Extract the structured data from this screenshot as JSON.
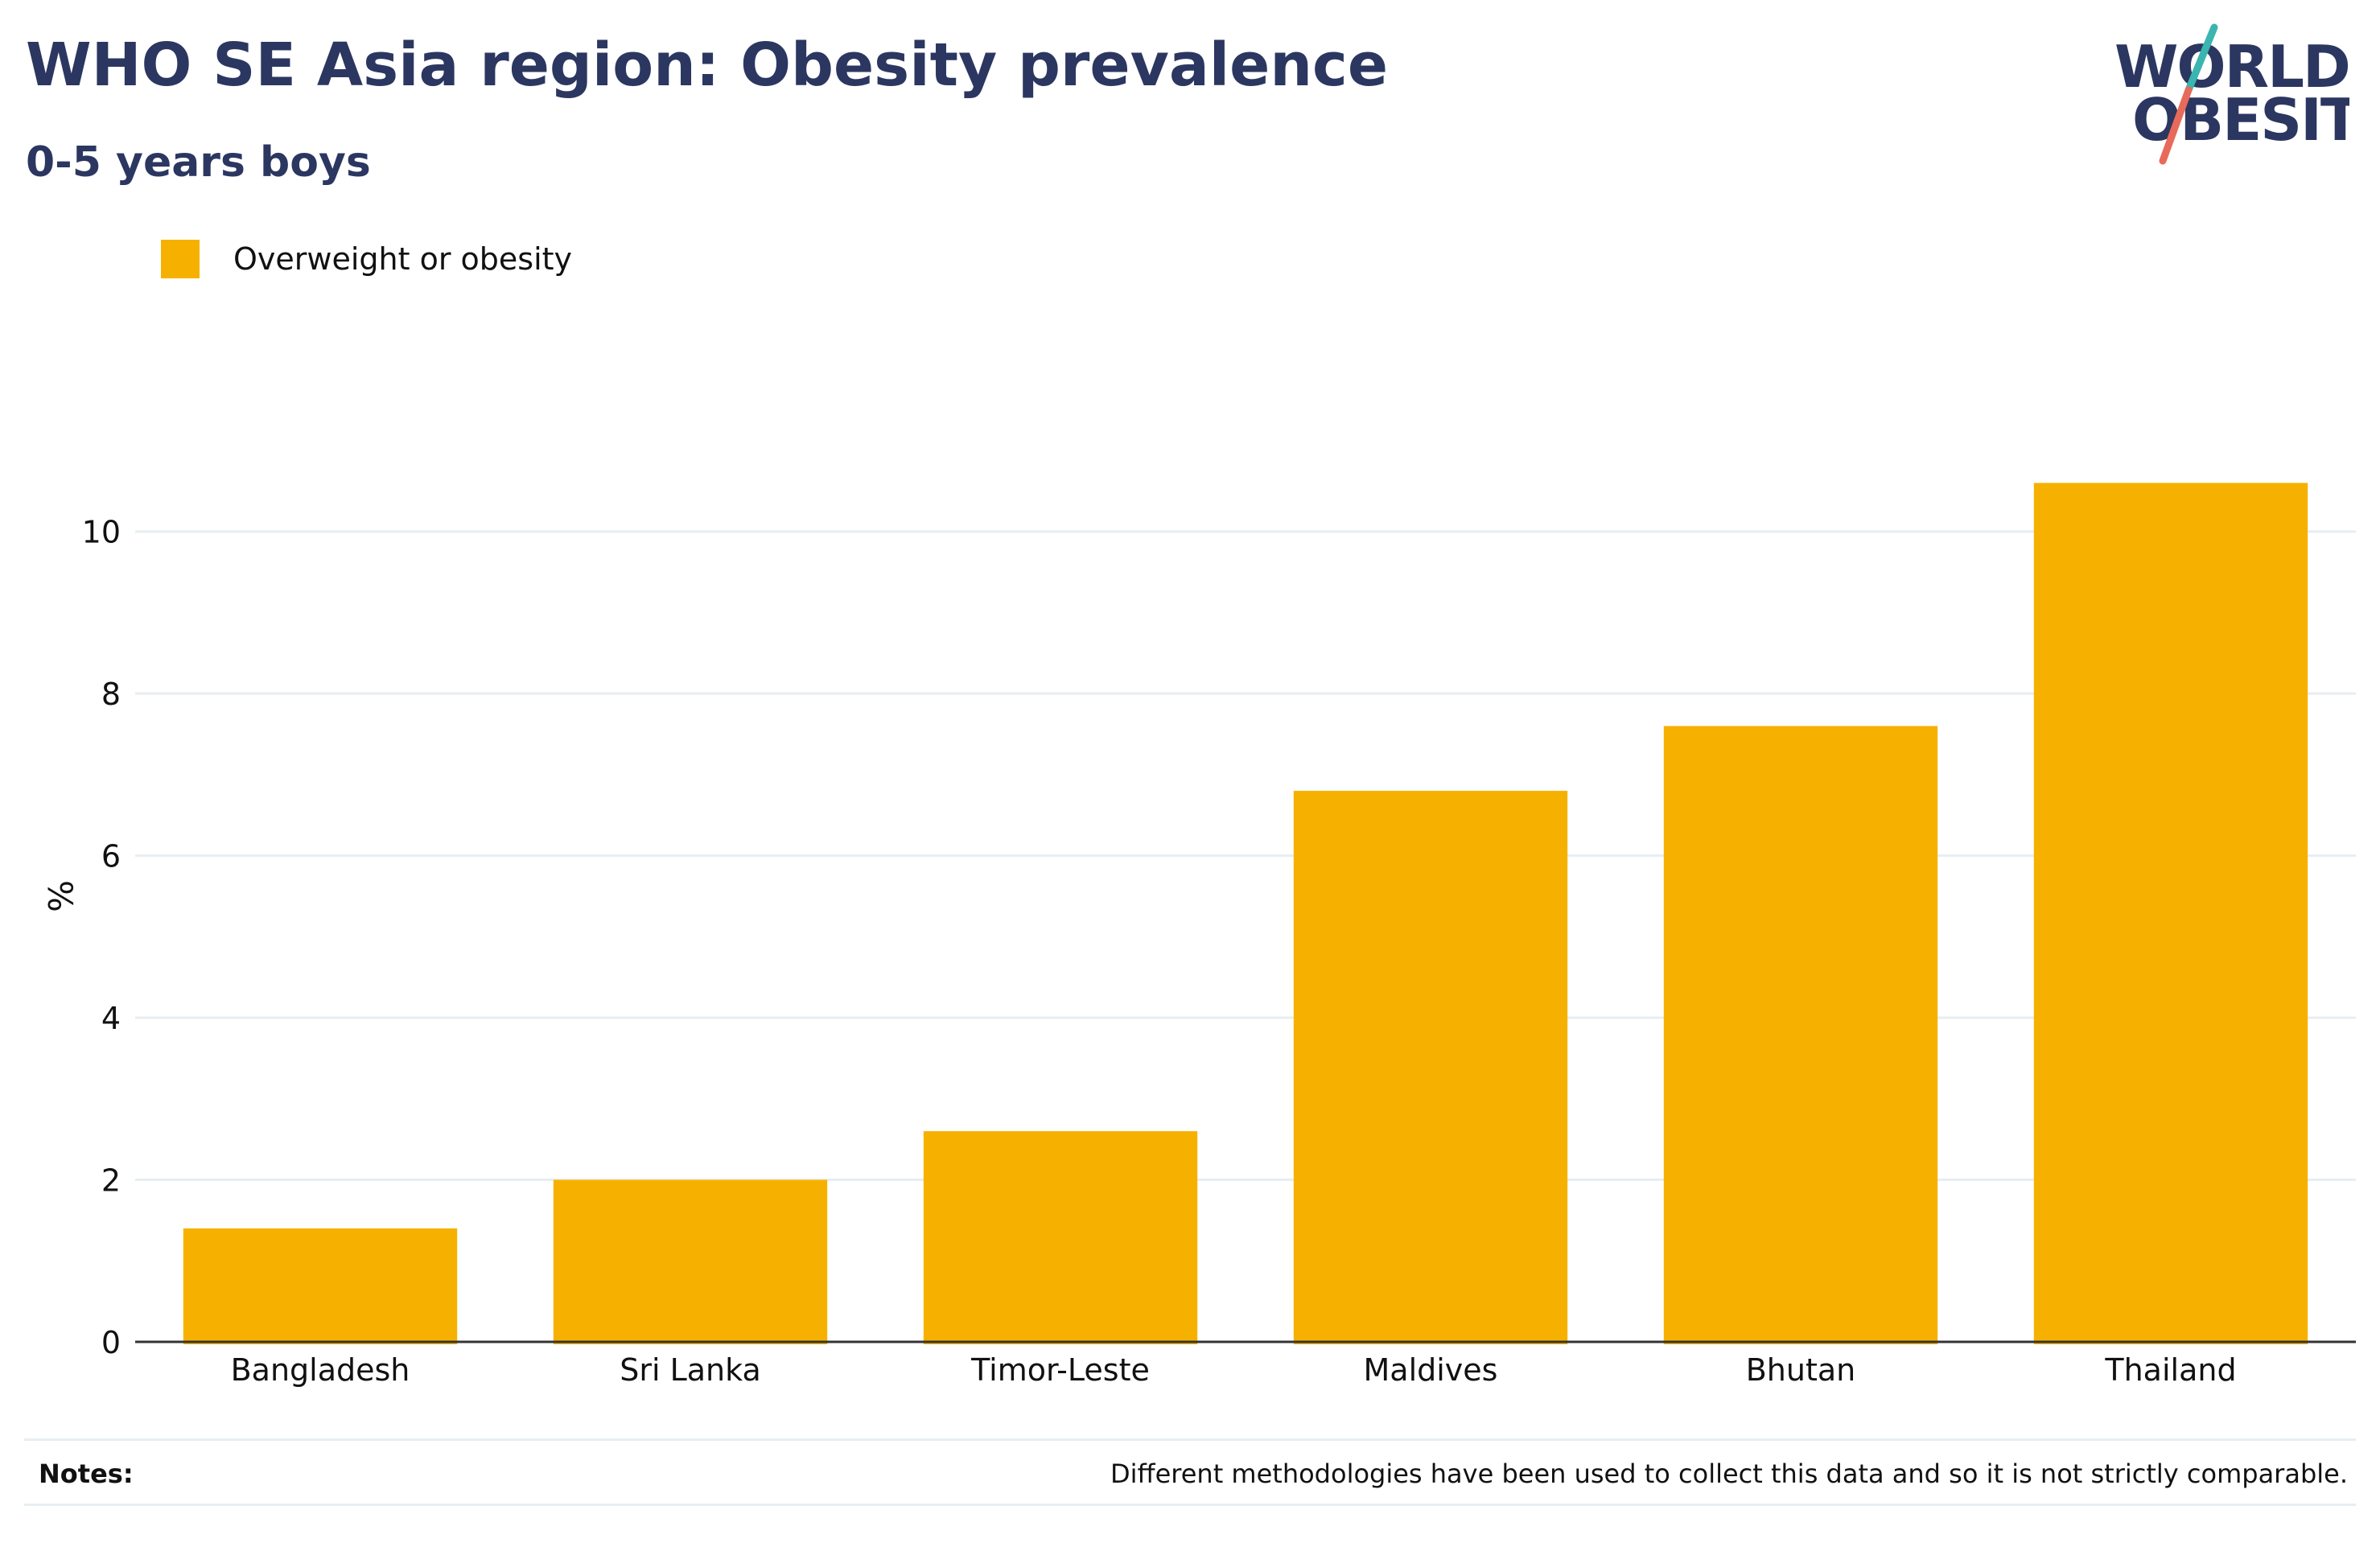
{
  "header": {
    "title": "WHO SE Asia region: Obesity prevalence",
    "subtitle": "0-5 years boys"
  },
  "logo": {
    "line1": "WORLD",
    "line2": "OBESITY",
    "text_color": "#2b3760",
    "slash_top_color": "#3bb5b0",
    "slash_bottom_color": "#e86a5a"
  },
  "notes": {
    "label": "Notes:",
    "text": "Different methodologies have been used to collect this data and so it is not strictly comparable."
  },
  "chart_data": {
    "type": "bar",
    "categories": [
      "Bangladesh",
      "Sri Lanka",
      "Timor-Leste",
      "Maldives",
      "Bhutan",
      "Thailand"
    ],
    "series": [
      {
        "name": "Overweight or obesity",
        "color": "#f6b100",
        "values": [
          1.4,
          2.0,
          2.6,
          6.8,
          7.6,
          10.6
        ]
      }
    ],
    "ylabel": "%",
    "ylim": [
      0,
      11
    ],
    "yticks": [
      0,
      2,
      4,
      6,
      8,
      10
    ],
    "grid": true,
    "legend_position": "top-left",
    "colors": {
      "grid": "#e6eef2",
      "axis": "#333333"
    }
  }
}
